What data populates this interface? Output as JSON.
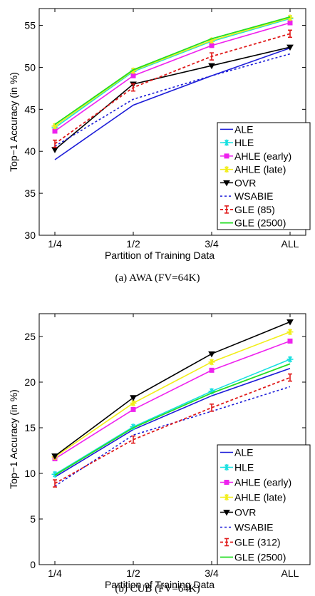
{
  "chart_data": [
    {
      "type": "line",
      "caption": "(a) AWA (FV=64K)",
      "xlabel": "Partition of Training Data",
      "ylabel": "Top−1 Accuracy (in %)",
      "categories": [
        "1/4",
        "1/2",
        "3/4",
        "ALL"
      ],
      "ylim": [
        30,
        57
      ],
      "yticks": [
        30,
        35,
        40,
        45,
        50,
        55
      ],
      "legend_position": "lower-right",
      "grid": false,
      "series": [
        {
          "name": "ALE",
          "values": [
            39.0,
            45.5,
            49.0,
            52.3
          ],
          "color": "#1c1cd8",
          "dash": "",
          "marker": "none",
          "width": 1.6
        },
        {
          "name": "HLE",
          "values": [
            42.8,
            49.5,
            53.1,
            55.8
          ],
          "color": "#16e0e0",
          "dash": "",
          "marker": "star",
          "width": 1.6
        },
        {
          "name": "AHLE (early)",
          "values": [
            42.4,
            49.0,
            52.6,
            55.3
          ],
          "color": "#ee22ee",
          "dash": "",
          "marker": "square",
          "width": 1.6
        },
        {
          "name": "AHLE (late)",
          "values": [
            43.0,
            49.6,
            53.2,
            55.9
          ],
          "color": "#f2ee18",
          "dash": "",
          "marker": "star",
          "width": 1.6
        },
        {
          "name": "OVR",
          "values": [
            40.2,
            48.0,
            50.2,
            52.4
          ],
          "color": "#000000",
          "dash": "",
          "marker": "triangle",
          "width": 1.6
        },
        {
          "name": "WSABIE",
          "values": [
            40.6,
            46.2,
            49.0,
            51.6
          ],
          "color": "#1c1cd8",
          "dash": "3,3",
          "marker": "none",
          "width": 1.6
        },
        {
          "name": "GLE (85)",
          "values": [
            40.9,
            47.6,
            51.3,
            54.0
          ],
          "color": "#e01a1a",
          "dash": "4,3",
          "marker": "errorbar",
          "width": 1.8
        },
        {
          "name": "GLE (2500)",
          "values": [
            43.2,
            49.7,
            53.4,
            56.0
          ],
          "color": "#22dd22",
          "dash": "",
          "marker": "none",
          "width": 1.8
        }
      ]
    },
    {
      "type": "line",
      "caption": "(b) CUB (FV=64K)",
      "xlabel": "Partition of Training Data",
      "ylabel": "Top−1 Accuracy (in %)",
      "categories": [
        "1/4",
        "1/2",
        "3/4",
        "ALL"
      ],
      "ylim": [
        0,
        27.5
      ],
      "yticks": [
        0,
        5,
        10,
        15,
        20,
        25
      ],
      "legend_position": "lower-right",
      "grid": false,
      "series": [
        {
          "name": "ALE",
          "values": [
            9.6,
            14.8,
            18.5,
            21.5
          ],
          "color": "#1c1cd8",
          "dash": "",
          "marker": "none",
          "width": 1.6
        },
        {
          "name": "HLE",
          "values": [
            9.9,
            15.1,
            19.0,
            22.5
          ],
          "color": "#16e0e0",
          "dash": "",
          "marker": "star",
          "width": 1.6
        },
        {
          "name": "AHLE (early)",
          "values": [
            11.6,
            17.0,
            21.3,
            24.5
          ],
          "color": "#ee22ee",
          "dash": "",
          "marker": "square",
          "width": 1.6
        },
        {
          "name": "AHLE (late)",
          "values": [
            11.8,
            17.7,
            22.2,
            25.5
          ],
          "color": "#f2ee18",
          "dash": "",
          "marker": "star",
          "width": 1.6
        },
        {
          "name": "OVR",
          "values": [
            11.9,
            18.3,
            23.1,
            26.6
          ],
          "color": "#000000",
          "dash": "",
          "marker": "triangle",
          "width": 1.6
        },
        {
          "name": "WSABIE",
          "values": [
            8.6,
            14.2,
            16.8,
            19.5
          ],
          "color": "#1c1cd8",
          "dash": "3,3",
          "marker": "none",
          "width": 1.6
        },
        {
          "name": "GLE (312)",
          "values": [
            8.9,
            13.7,
            17.2,
            20.5
          ],
          "color": "#e01a1a",
          "dash": "4,3",
          "marker": "errorbar",
          "width": 1.8
        },
        {
          "name": "GLE (2500)",
          "values": [
            9.8,
            15.0,
            18.8,
            22.0
          ],
          "color": "#22dd22",
          "dash": "",
          "marker": "none",
          "width": 1.8
        }
      ]
    }
  ]
}
